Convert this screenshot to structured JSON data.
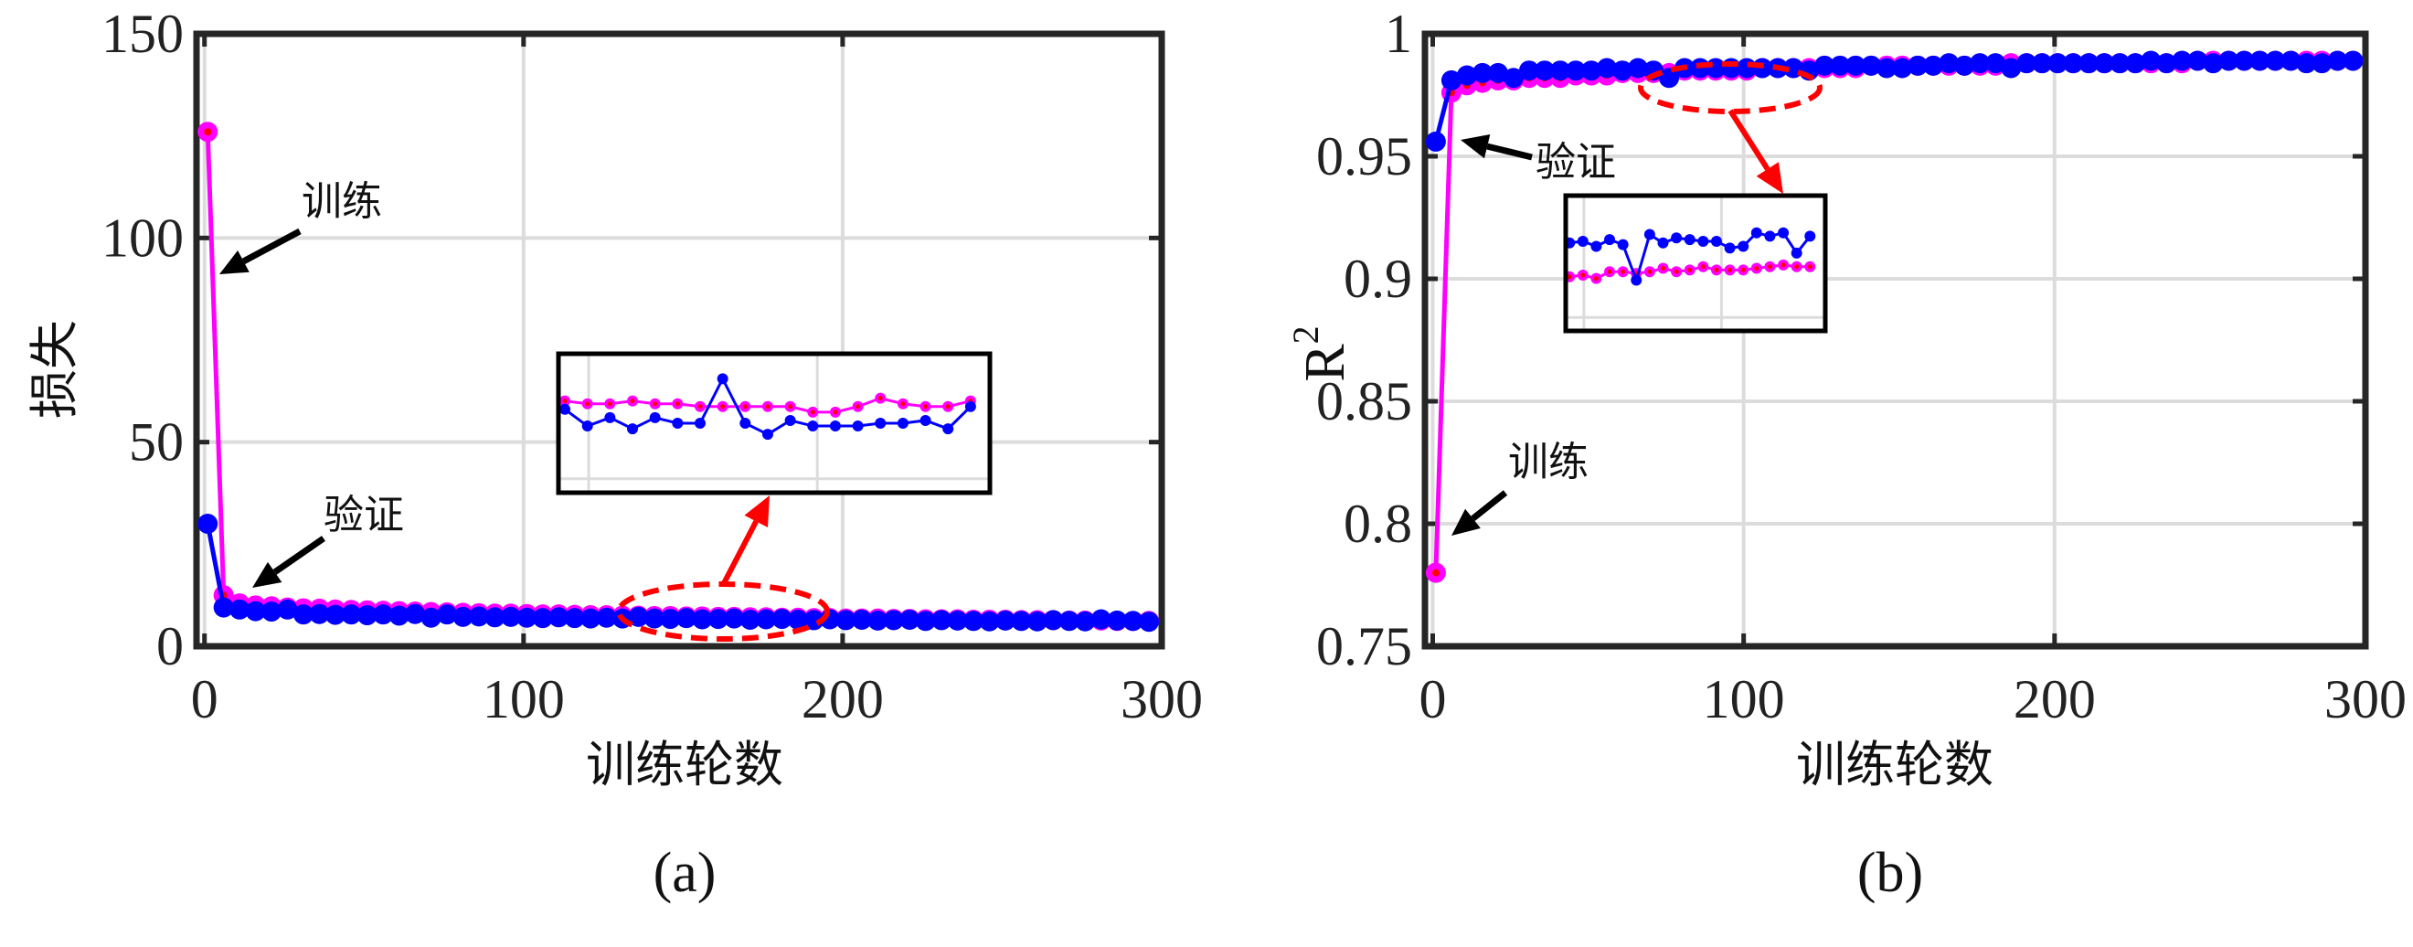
{
  "chart_data": [
    {
      "type": "line",
      "panel_label": "(a)",
      "xlabel": "训练轮数",
      "ylabel": "损失",
      "xlim": [
        -2.5,
        300
      ],
      "ylim": [
        0,
        150
      ],
      "xticks": [
        "0",
        "100",
        "200",
        "300"
      ],
      "yticks": [
        "0",
        "50",
        "100",
        "150"
      ],
      "grid": true,
      "x": [
        1,
        6,
        11,
        16,
        21,
        26,
        31,
        36,
        41,
        46,
        51,
        56,
        61,
        66,
        71,
        76,
        81,
        86,
        91,
        96,
        101,
        106,
        111,
        116,
        121,
        126,
        131,
        136,
        141,
        146,
        151,
        156,
        161,
        166,
        171,
        176,
        181,
        186,
        191,
        196,
        201,
        206,
        211,
        216,
        221,
        226,
        231,
        236,
        241,
        246,
        251,
        256,
        261,
        266,
        271,
        276,
        281,
        286,
        291,
        296
      ],
      "series": [
        {
          "key": "train",
          "color": "#ff00ff",
          "values": [
            126,
            12.5,
            10.5,
            10,
            9.8,
            9.5,
            9.3,
            9.2,
            9.0,
            8.9,
            8.8,
            8.7,
            8.6,
            8.5,
            8.4,
            8.3,
            8.2,
            8.1,
            8.0,
            8.0,
            7.9,
            7.8,
            7.8,
            7.7,
            7.6,
            7.6,
            7.5,
            7.5,
            7.4,
            7.4,
            7.3,
            7.3,
            7.2,
            7.2,
            7.1,
            7.1,
            7.0,
            7.0,
            6.9,
            6.9,
            6.8,
            6.8,
            6.8,
            6.7,
            6.7,
            6.6,
            6.6,
            6.6,
            6.5,
            6.5,
            6.5,
            6.4,
            6.4,
            6.4,
            6.3,
            6.3,
            6.3,
            6.2,
            6.2,
            6.2
          ]
        },
        {
          "key": "validation",
          "color": "#0000ff",
          "values": [
            30,
            9.5,
            9.0,
            8.6,
            8.5,
            9.0,
            7.8,
            7.9,
            7.7,
            7.8,
            7.6,
            7.8,
            7.5,
            7.9,
            7.0,
            7.8,
            7.2,
            7.3,
            7.1,
            7.2,
            7.0,
            6.9,
            7.1,
            6.9,
            6.8,
            7.0,
            6.8,
            7.2,
            6.8,
            6.7,
            6.9,
            6.6,
            6.7,
            6.8,
            6.5,
            6.6,
            6.7,
            6.5,
            6.4,
            6.6,
            6.4,
            6.5,
            6.3,
            6.4,
            6.5,
            6.2,
            6.4,
            6.3,
            6.2,
            6.1,
            6.3,
            6.2,
            6.1,
            6.4,
            6.2,
            6.1,
            6.6,
            6.3,
            6.2,
            6.0
          ]
        }
      ],
      "annotations": [
        {
          "text": "训练",
          "target": "train"
        },
        {
          "text": "验证",
          "target": "validation"
        }
      ],
      "inset": {
        "xlim": [
          130,
          197
        ],
        "ylim": [
          5.9,
          8.4
        ],
        "x": [
          131,
          134.5,
          138,
          141.5,
          145,
          148.5,
          152,
          155.5,
          159,
          162.5,
          166,
          169.5,
          173,
          176.5,
          180,
          183.5,
          187,
          190.5,
          194
        ],
        "train": [
          7.55,
          7.5,
          7.5,
          7.55,
          7.5,
          7.5,
          7.45,
          7.45,
          7.45,
          7.45,
          7.45,
          7.35,
          7.35,
          7.45,
          7.6,
          7.5,
          7.45,
          7.45,
          7.55
        ],
        "validation": [
          7.4,
          7.1,
          7.25,
          7.05,
          7.25,
          7.15,
          7.15,
          7.95,
          7.15,
          6.95,
          7.2,
          7.1,
          7.1,
          7.1,
          7.15,
          7.15,
          7.2,
          7.05,
          7.45
        ]
      }
    },
    {
      "type": "line",
      "panel_label": "(b)",
      "xlabel": "训练轮数",
      "ylabel": "R",
      "ylabel_sup": "2",
      "xlim": [
        -2.5,
        300
      ],
      "ylim": [
        0.75,
        1
      ],
      "xticks": [
        "0",
        "100",
        "200",
        "300"
      ],
      "yticks": [
        "0.75",
        "0.8",
        "0.85",
        "0.9",
        "0.95",
        "1"
      ],
      "grid": true,
      "x": [
        1,
        6,
        11,
        16,
        21,
        26,
        31,
        36,
        41,
        46,
        51,
        56,
        61,
        66,
        71,
        76,
        81,
        86,
        91,
        96,
        101,
        106,
        111,
        116,
        121,
        126,
        131,
        136,
        141,
        146,
        151,
        156,
        161,
        166,
        171,
        176,
        181,
        186,
        191,
        196,
        201,
        206,
        211,
        216,
        221,
        226,
        231,
        236,
        241,
        246,
        251,
        256,
        261,
        266,
        271,
        276,
        281,
        286,
        291,
        296
      ],
      "series": [
        {
          "key": "train",
          "color": "#ff00ff",
          "values": [
            0.78,
            0.976,
            0.979,
            0.98,
            0.981,
            0.981,
            0.982,
            0.982,
            0.982,
            0.983,
            0.983,
            0.983,
            0.984,
            0.984,
            0.984,
            0.984,
            0.985,
            0.985,
            0.985,
            0.985,
            0.985,
            0.986,
            0.986,
            0.986,
            0.986,
            0.986,
            0.986,
            0.986,
            0.987,
            0.987,
            0.987,
            0.987,
            0.987,
            0.987,
            0.987,
            0.987,
            0.987,
            0.988,
            0.988,
            0.988,
            0.988,
            0.988,
            0.988,
            0.988,
            0.988,
            0.988,
            0.988,
            0.988,
            0.988,
            0.989,
            0.989,
            0.989,
            0.989,
            0.989,
            0.989,
            0.989,
            0.989,
            0.989,
            0.989,
            0.989
          ]
        },
        {
          "key": "validation",
          "color": "#0000ff",
          "values": [
            0.956,
            0.981,
            0.983,
            0.984,
            0.984,
            0.982,
            0.985,
            0.985,
            0.985,
            0.985,
            0.985,
            0.986,
            0.985,
            0.986,
            0.985,
            0.982,
            0.986,
            0.986,
            0.986,
            0.986,
            0.986,
            0.986,
            0.986,
            0.986,
            0.985,
            0.987,
            0.987,
            0.987,
            0.987,
            0.986,
            0.986,
            0.987,
            0.987,
            0.988,
            0.987,
            0.988,
            0.988,
            0.986,
            0.988,
            0.988,
            0.988,
            0.988,
            0.988,
            0.988,
            0.988,
            0.988,
            0.989,
            0.988,
            0.989,
            0.989,
            0.988,
            0.989,
            0.989,
            0.989,
            0.989,
            0.989,
            0.988,
            0.988,
            0.989,
            0.989
          ]
        }
      ],
      "annotations": [
        {
          "text": "验证",
          "target": "validation"
        },
        {
          "text": "训练",
          "target": "train"
        }
      ],
      "inset": {
        "xlim": [
          58,
          126
        ],
        "ylim": [
          0.98,
          0.988
        ],
        "x": [
          59,
          62.5,
          66,
          69.5,
          73,
          76.5,
          80,
          83.5,
          87,
          90.5,
          94,
          97.5,
          101,
          104.5,
          108,
          111.5,
          115,
          118.5,
          122
        ],
        "train": [
          0.9832,
          0.9833,
          0.9831,
          0.9835,
          0.9835,
          0.9834,
          0.9835,
          0.9837,
          0.9835,
          0.9836,
          0.9838,
          0.9836,
          0.9836,
          0.9836,
          0.9837,
          0.9838,
          0.9839,
          0.9838,
          0.9838
        ],
        "validation": [
          0.9852,
          0.9853,
          0.985,
          0.9854,
          0.9851,
          0.983,
          0.9857,
          0.9852,
          0.9855,
          0.9854,
          0.9853,
          0.9853,
          0.9849,
          0.985,
          0.9858,
          0.9856,
          0.9858,
          0.9846,
          0.9856
        ]
      }
    }
  ],
  "colors": {
    "annotation_highlight": "#ff0000",
    "axis": "#262626",
    "grid": "#dcdcdc",
    "inset_border": "#000000"
  }
}
